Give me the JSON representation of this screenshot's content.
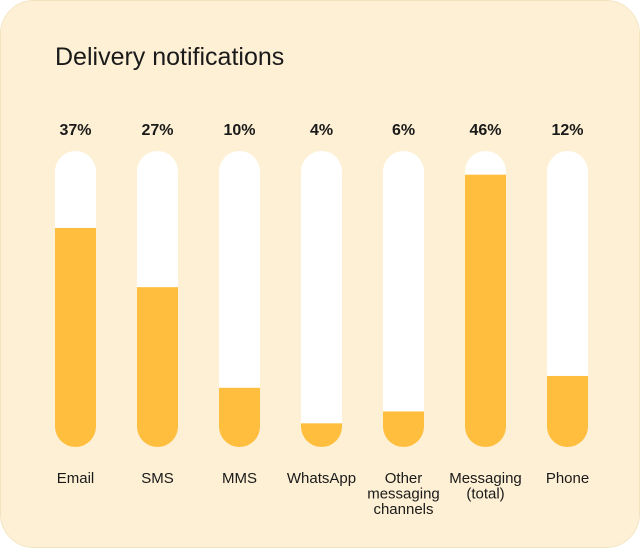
{
  "chart_data": {
    "type": "bar",
    "title": "Delivery notifications",
    "categories": [
      [
        "Email"
      ],
      [
        "SMS"
      ],
      [
        "MMS"
      ],
      [
        "WhatsApp"
      ],
      [
        "Other",
        "messaging",
        "channels"
      ],
      [
        "Messaging",
        "(total)"
      ],
      [
        "Phone"
      ]
    ],
    "values": [
      37,
      27,
      10,
      4,
      6,
      46,
      12
    ],
    "value_labels": [
      "37%",
      "27%",
      "10%",
      "4%",
      "6%",
      "46%",
      "12%"
    ],
    "ylim": [
      0,
      50
    ],
    "grid": false,
    "legend": "none",
    "colors": {
      "background": "#fdf0d4",
      "track": "#ffffff",
      "fill": "#ffbe3d",
      "text": "#1a1a1a"
    }
  }
}
